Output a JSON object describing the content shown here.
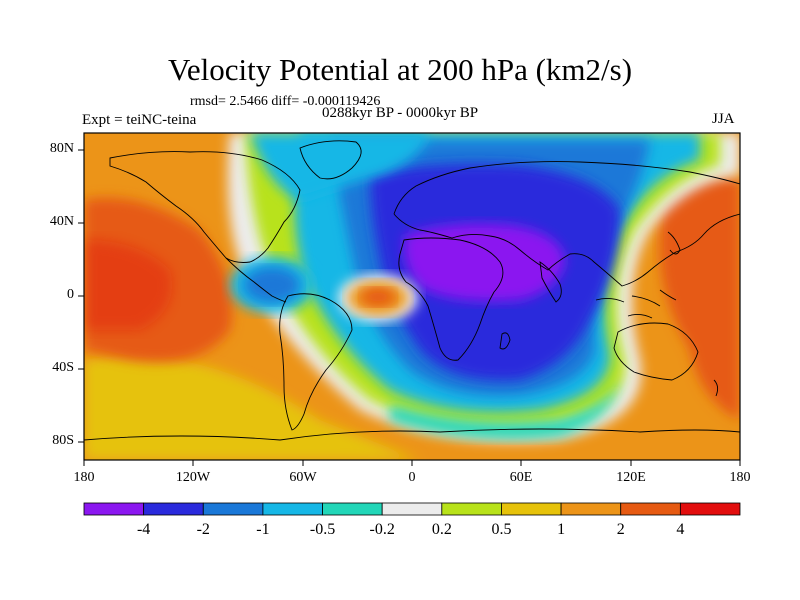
{
  "figure": {
    "title": "Velocity Potential at 200 hPa (km2/s)",
    "stats": "rmsd= 2.5466 diff= -0.000119426",
    "experiment": "Expt = teiNC-teina",
    "period": "0288kyr BP - 0000kyr BP",
    "season": "JJA"
  },
  "axes": {
    "lat_labels": [
      "80N",
      "40N",
      "0",
      "40S",
      "80S"
    ],
    "lon_labels": [
      "180",
      "120W",
      "60W",
      "0",
      "60E",
      "120E",
      "180"
    ]
  },
  "colorbar": {
    "colors": [
      "#8b17f0",
      "#2a2adc",
      "#1a78d8",
      "#16b7e6",
      "#22d6b8",
      "#ececec",
      "#b8e21a",
      "#e6c20a",
      "#ec9418",
      "#e65a12",
      "#e20e0e"
    ],
    "labels": [
      "-4",
      "-2",
      "-1",
      "-0.5",
      "-0.2",
      "0.2",
      "0.5",
      "1",
      "2",
      "4"
    ]
  }
}
